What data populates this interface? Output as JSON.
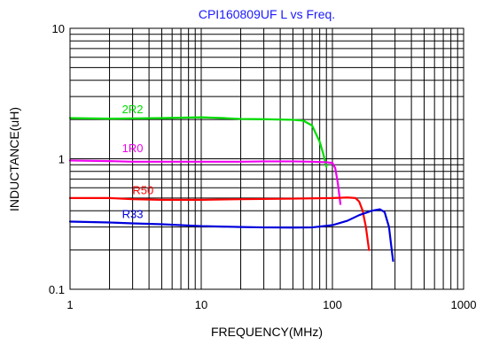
{
  "chart_data": {
    "type": "line",
    "title": "CPI160809UF L vs Freq.",
    "xlabel": "FREQUENCY(MHz)",
    "ylabel": "INDUCTANCE(uH)",
    "x_scale": "log",
    "y_scale": "log",
    "xlim": [
      1,
      1000
    ],
    "ylim": [
      0.1,
      10
    ],
    "x_tick_labels": [
      "1",
      "10",
      "100",
      "1000"
    ],
    "y_tick_labels": [
      "0.1",
      "1",
      "10"
    ],
    "grid": true,
    "series": [
      {
        "name": "2R2",
        "color": "#00dd00",
        "points": [
          [
            1,
            2.05
          ],
          [
            2,
            2.03
          ],
          [
            3,
            2.04
          ],
          [
            5,
            2.05
          ],
          [
            8,
            2.07
          ],
          [
            10,
            2.08
          ],
          [
            15,
            2.05
          ],
          [
            20,
            2.02
          ],
          [
            30,
            2.01
          ],
          [
            40,
            2.0
          ],
          [
            50,
            1.99
          ],
          [
            60,
            1.96
          ],
          [
            70,
            1.8
          ],
          [
            80,
            1.35
          ],
          [
            85,
            1.1
          ],
          [
            88,
            0.95
          ],
          [
            90,
            0.87
          ]
        ]
      },
      {
        "name": "1R0",
        "color": "#ee00ee",
        "points": [
          [
            1,
            0.97
          ],
          [
            2,
            0.96
          ],
          [
            3,
            0.95
          ],
          [
            5,
            0.95
          ],
          [
            10,
            0.95
          ],
          [
            20,
            0.95
          ],
          [
            30,
            0.955
          ],
          [
            50,
            0.955
          ],
          [
            70,
            0.95
          ],
          [
            90,
            0.94
          ],
          [
            100,
            0.93
          ],
          [
            105,
            0.85
          ],
          [
            110,
            0.65
          ],
          [
            113,
            0.52
          ],
          [
            115,
            0.45
          ]
        ]
      },
      {
        "name": "R50",
        "color": "#ff0000",
        "points": [
          [
            1,
            0.5
          ],
          [
            2,
            0.5
          ],
          [
            3,
            0.49
          ],
          [
            5,
            0.485
          ],
          [
            10,
            0.485
          ],
          [
            20,
            0.49
          ],
          [
            50,
            0.495
          ],
          [
            100,
            0.5
          ],
          [
            130,
            0.505
          ],
          [
            150,
            0.5
          ],
          [
            160,
            0.47
          ],
          [
            170,
            0.4
          ],
          [
            180,
            0.3
          ],
          [
            190,
            0.2
          ]
        ]
      },
      {
        "name": "R33",
        "color": "#0000dd",
        "points": [
          [
            1,
            0.33
          ],
          [
            2,
            0.325
          ],
          [
            3,
            0.32
          ],
          [
            5,
            0.315
          ],
          [
            10,
            0.305
          ],
          [
            20,
            0.3
          ],
          [
            30,
            0.298
          ],
          [
            50,
            0.297
          ],
          [
            70,
            0.298
          ],
          [
            100,
            0.31
          ],
          [
            130,
            0.335
          ],
          [
            160,
            0.37
          ],
          [
            200,
            0.4
          ],
          [
            230,
            0.41
          ],
          [
            250,
            0.39
          ],
          [
            270,
            0.3
          ],
          [
            280,
            0.22
          ],
          [
            290,
            0.165
          ]
        ]
      }
    ]
  }
}
